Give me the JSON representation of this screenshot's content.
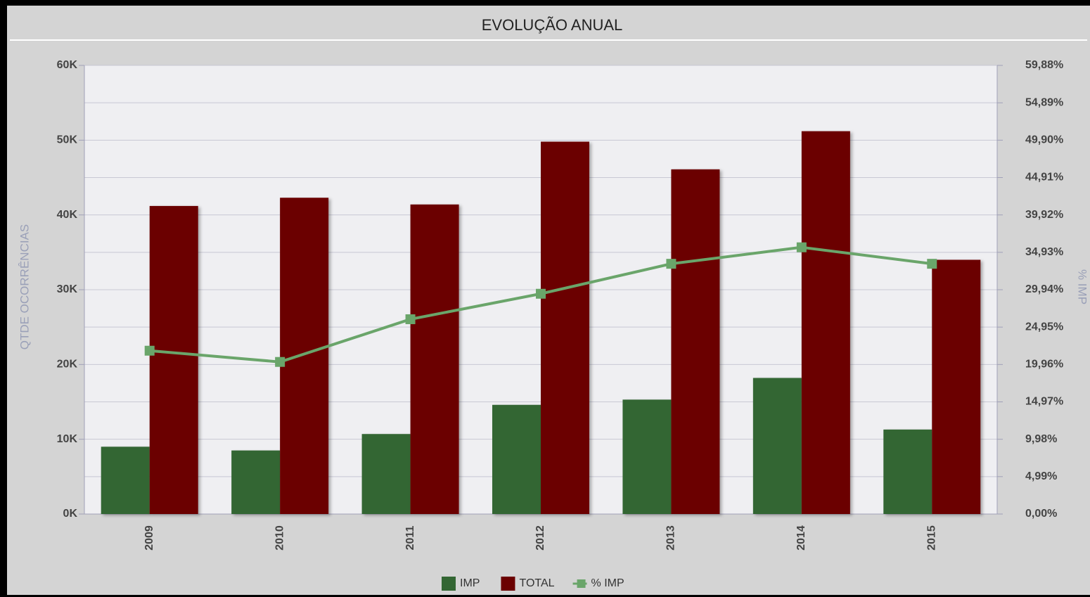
{
  "chart_data": {
    "type": "bar",
    "title": "EVOLUÇÃO ANUAL",
    "categories": [
      "2009",
      "2010",
      "2011",
      "2012",
      "2013",
      "2014",
      "2015"
    ],
    "y_label": "QTDE OCORRÊNCIAS",
    "y2_label": "% IMP",
    "series": [
      {
        "name": "IMP",
        "color": "#336633",
        "type": "bar",
        "values": [
          9000,
          8500,
          10700,
          14600,
          15300,
          18200,
          11300
        ]
      },
      {
        "name": "TOTAL",
        "color": "#6b0000",
        "type": "bar",
        "values": [
          41200,
          42300,
          41400,
          49800,
          46100,
          51200,
          34000
        ]
      },
      {
        "name": "% IMP",
        "color": "#6aa56a",
        "type": "line",
        "axis": "y2",
        "values": [
          21.8,
          20.3,
          26.0,
          29.4,
          33.4,
          35.6,
          33.4
        ]
      }
    ],
    "ylim": [
      0,
      60000
    ],
    "yticks": [
      {
        "value": 0,
        "label": "0K"
      },
      {
        "value": 10000,
        "label": "10K"
      },
      {
        "value": 20000,
        "label": "20K"
      },
      {
        "value": 30000,
        "label": "30K"
      },
      {
        "value": 40000,
        "label": "40K"
      },
      {
        "value": 50000,
        "label": "50K"
      },
      {
        "value": 60000,
        "label": "60K"
      }
    ],
    "y2lim": [
      0,
      59.88
    ],
    "y2ticks": [
      {
        "value": 0,
        "label": "0,00%"
      },
      {
        "value": 4.99,
        "label": "4,99%"
      },
      {
        "value": 9.98,
        "label": "9,98%"
      },
      {
        "value": 14.97,
        "label": "14,97%"
      },
      {
        "value": 19.96,
        "label": "19,96%"
      },
      {
        "value": 24.95,
        "label": "24,95%"
      },
      {
        "value": 29.94,
        "label": "29,94%"
      },
      {
        "value": 34.93,
        "label": "34,93%"
      },
      {
        "value": 39.92,
        "label": "39,92%"
      },
      {
        "value": 44.91,
        "label": "44,91%"
      },
      {
        "value": 49.9,
        "label": "49,90%"
      },
      {
        "value": 54.89,
        "label": "54,89%"
      },
      {
        "value": 59.88,
        "label": "59,88%"
      }
    ],
    "grid": true
  }
}
